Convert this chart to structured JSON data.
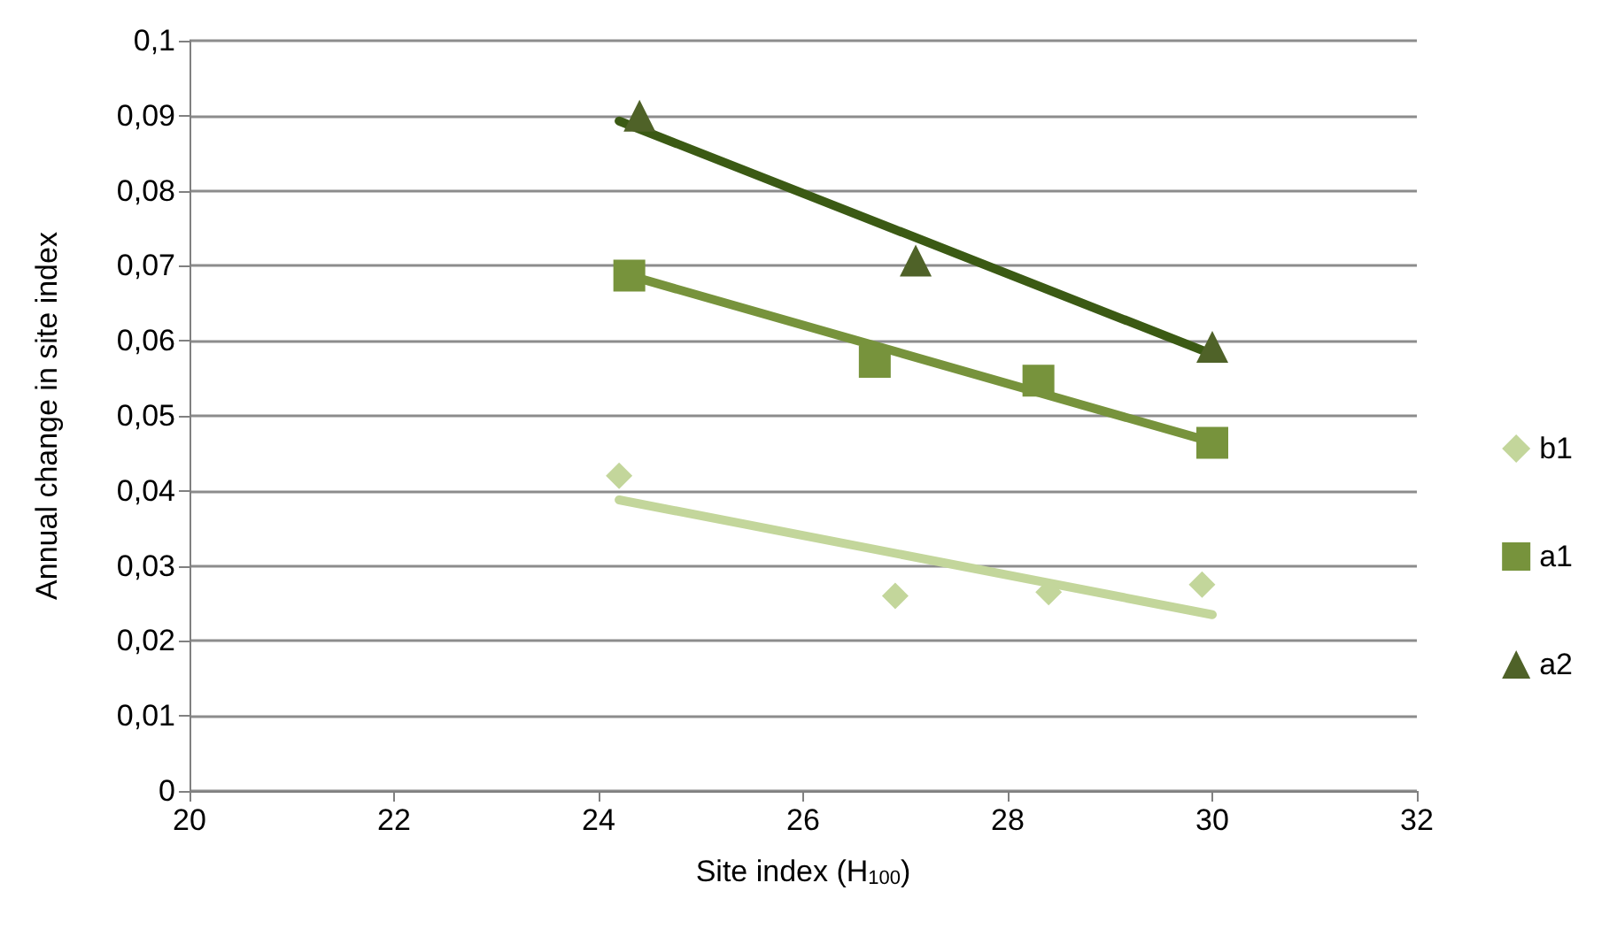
{
  "chart_data": {
    "type": "scatter",
    "xlabel": "Site index (H$_{100}$)",
    "ylabel": "Annual change in site index",
    "xlim": [
      20,
      32
    ],
    "xticks": [
      20,
      22,
      24,
      26,
      28,
      30,
      32
    ],
    "ylim": [
      0,
      0.1
    ],
    "yticks": [
      {
        "value": 0,
        "label": "0"
      },
      {
        "value": 0.01,
        "label": "0,01"
      },
      {
        "value": 0.02,
        "label": "0,02"
      },
      {
        "value": 0.03,
        "label": "0,03"
      },
      {
        "value": 0.04,
        "label": "0,04"
      },
      {
        "value": 0.05,
        "label": "0,05"
      },
      {
        "value": 0.06,
        "label": "0,06"
      },
      {
        "value": 0.07,
        "label": "0,07"
      },
      {
        "value": 0.08,
        "label": "0,08"
      },
      {
        "value": 0.09,
        "label": "0,09"
      },
      {
        "value": 0.1,
        "label": "0,1"
      }
    ],
    "grid": "y",
    "legend": "right",
    "series": [
      {
        "name": "b1",
        "marker": "diamond",
        "color": "#c3d69b",
        "x": [
          24.2,
          26.9,
          28.4,
          29.9
        ],
        "values": [
          0.042,
          0.026,
          0.0265,
          0.0275
        ]
      },
      {
        "name": "a1",
        "marker": "square",
        "color": "#77933c",
        "x": [
          24.3,
          26.7,
          28.3,
          30.0
        ],
        "values": [
          0.0687,
          0.0572,
          0.0547,
          0.0464
        ]
      },
      {
        "name": "a2",
        "marker": "triangle",
        "color": "#4f6228",
        "x": [
          24.4,
          27.1,
          30.0
        ],
        "values": [
          0.09,
          0.0707,
          0.0592
        ]
      },
      {
        "type": "line",
        "marker": "none",
        "color": "#c3d69b",
        "x": [
          24.2,
          30.0
        ],
        "values": [
          0.0388,
          0.0235
        ]
      },
      {
        "type": "line",
        "marker": "none",
        "color": "#77933c",
        "x": [
          24.3,
          30.0
        ],
        "values": [
          0.0687,
          0.0465
        ]
      },
      {
        "type": "line",
        "marker": "none",
        "color": "#3b5a14",
        "x": [
          24.2,
          30.0
        ],
        "values": [
          0.0893,
          0.0582
        ]
      }
    ]
  }
}
